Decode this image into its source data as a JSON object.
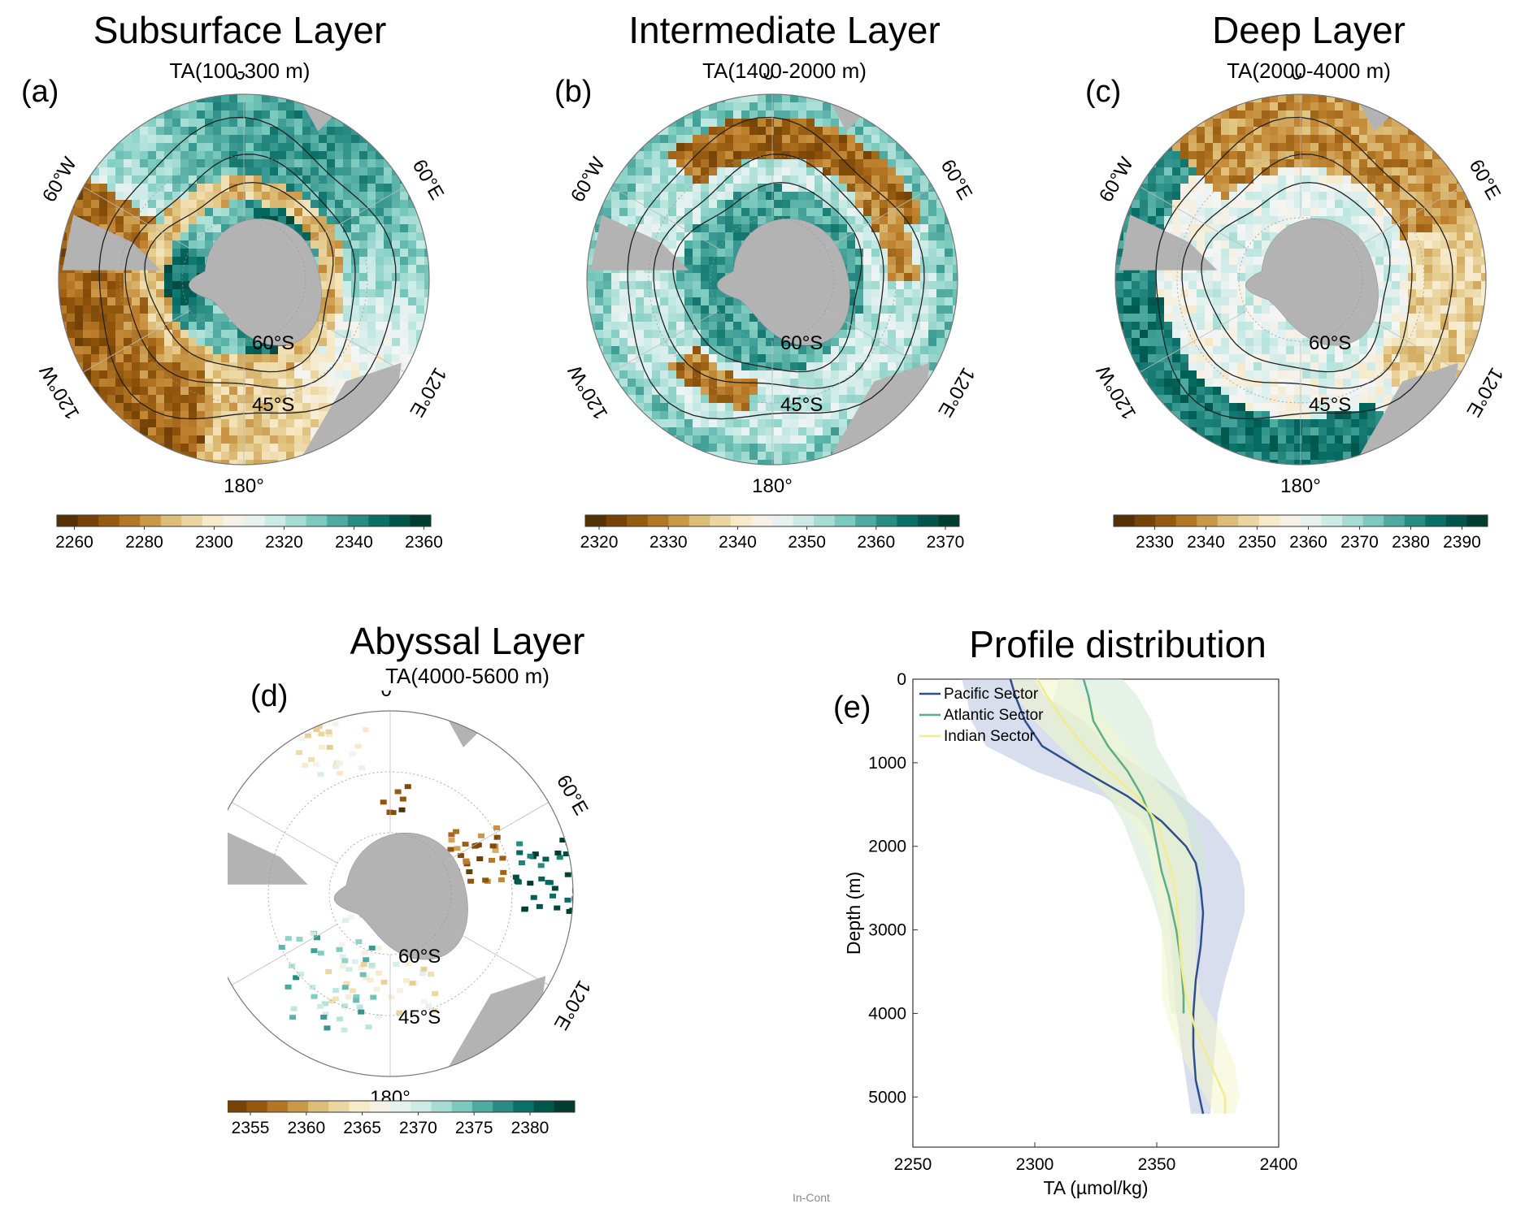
{
  "panels": [
    {
      "id": "a",
      "label": "(a)",
      "title": "Subsurface Layer",
      "subtitle": "TA(100-300 m)",
      "lon_labels": [
        "0°",
        "60°E",
        "120°E",
        "180°",
        "120°W",
        "60°W"
      ],
      "lat_labels": [
        "60°S",
        "45°S"
      ],
      "colorbar": {
        "min": 2255,
        "max": 2362,
        "ticks": [
          2260,
          2280,
          2300,
          2320,
          2340,
          2360
        ]
      },
      "style": "dense"
    },
    {
      "id": "b",
      "label": "(b)",
      "title": "Intermediate Layer",
      "subtitle": "TA(1400-2000 m)",
      "lon_labels": [
        "0°",
        "60°E",
        "120°E",
        "180°",
        "120°W",
        "60°W"
      ],
      "lat_labels": [
        "60°S",
        "45°S"
      ],
      "colorbar": {
        "min": 2318,
        "max": 2372,
        "ticks": [
          2320,
          2330,
          2340,
          2350,
          2360,
          2370
        ]
      },
      "style": "dense"
    },
    {
      "id": "c",
      "label": "(c)",
      "title": "Deep Layer",
      "subtitle": "TA(2000-4000 m)",
      "lon_labels": [
        "0°",
        "60°E",
        "120°E",
        "180°",
        "120°W",
        "60°W"
      ],
      "lat_labels": [
        "60°S",
        "45°S"
      ],
      "colorbar": {
        "min": 2322,
        "max": 2395,
        "ticks": [
          2330,
          2340,
          2350,
          2360,
          2370,
          2380,
          2390
        ]
      },
      "style": "dense"
    },
    {
      "id": "d",
      "label": "(d)",
      "title": "Abyssal Layer",
      "subtitle": "TA(4000-5600 m)",
      "lon_labels": [
        "0°",
        "60°E",
        "120°E",
        "180°",
        "120°W",
        "60°W"
      ],
      "lat_labels": [
        "60°S",
        "45°S"
      ],
      "colorbar": {
        "min": 2351,
        "max": 2384,
        "ticks": [
          2355,
          2360,
          2365,
          2370,
          2375,
          2380
        ]
      },
      "style": "sparse"
    }
  ],
  "chart_data": {
    "type": "line",
    "label": "(e)",
    "title": "Profile distribution",
    "xlabel": "TA (µmol/kg)",
    "ylabel": "Depth (m)",
    "xlim": [
      2250,
      2400
    ],
    "ylim": [
      0,
      5600
    ],
    "xticks": [
      2250,
      2300,
      2350,
      2400
    ],
    "yticks": [
      0,
      1000,
      2000,
      3000,
      4000,
      5000
    ],
    "y_reversed": true,
    "legend_position": "top-left",
    "series": [
      {
        "name": "Pacific Sector",
        "color": "#2d4f8e",
        "band_color": "#b8c3de",
        "depth": [
          0,
          200,
          500,
          800,
          1100,
          1400,
          1700,
          2000,
          2200,
          2500,
          2800,
          3200,
          3600,
          4000,
          4400,
          4800,
          5200
        ],
        "values": [
          2290,
          2292,
          2296,
          2303,
          2320,
          2338,
          2352,
          2362,
          2366,
          2368,
          2369,
          2368,
          2366,
          2365,
          2365,
          2366,
          2369
        ],
        "lower": [
          2270,
          2272,
          2274,
          2280,
          2300,
          2328,
          2344,
          2350,
          2352,
          2354,
          2355,
          2356,
          2357,
          2358,
          2360,
          2362,
          2364
        ],
        "upper": [
          2300,
          2304,
          2320,
          2330,
          2345,
          2360,
          2372,
          2380,
          2384,
          2386,
          2386,
          2382,
          2378,
          2375,
          2374,
          2373,
          2372
        ]
      },
      {
        "name": "Atlantic Sector",
        "color": "#5cae84",
        "band_color": "#cfe8d6",
        "depth": [
          0,
          200,
          500,
          800,
          1100,
          1400,
          1700,
          2000,
          2300,
          2600,
          3000,
          3400,
          3800,
          4000
        ],
        "values": [
          2320,
          2322,
          2324,
          2330,
          2338,
          2344,
          2348,
          2350,
          2352,
          2355,
          2358,
          2360,
          2361,
          2361
        ],
        "lower": [
          2310,
          2308,
          2306,
          2310,
          2318,
          2330,
          2336,
          2340,
          2344,
          2348,
          2352,
          2354,
          2355,
          2356
        ],
        "upper": [
          2336,
          2342,
          2348,
          2350,
          2356,
          2362,
          2366,
          2370,
          2370,
          2368,
          2366,
          2364,
          2364,
          2364
        ]
      },
      {
        "name": "Indian Sector",
        "color": "#f3ec8c",
        "band_color": "#f2f6cc",
        "depth": [
          0,
          200,
          500,
          800,
          1100,
          1400,
          1700,
          2000,
          2300,
          2600,
          3000,
          3400,
          3800,
          4200,
          4600,
          5000,
          5200
        ],
        "values": [
          2301,
          2305,
          2312,
          2320,
          2330,
          2342,
          2350,
          2353,
          2356,
          2358,
          2359,
          2360,
          2362,
          2366,
          2372,
          2378,
          2378
        ],
        "lower": [
          2290,
          2292,
          2300,
          2310,
          2320,
          2330,
          2340,
          2345,
          2348,
          2350,
          2352,
          2352,
          2352,
          2356,
          2362,
          2370,
          2374
        ],
        "upper": [
          2316,
          2320,
          2330,
          2338,
          2346,
          2356,
          2362,
          2364,
          2366,
          2366,
          2366,
          2366,
          2368,
          2376,
          2382,
          2384,
          2382
        ]
      }
    ]
  },
  "footer_text": "In-Cont"
}
